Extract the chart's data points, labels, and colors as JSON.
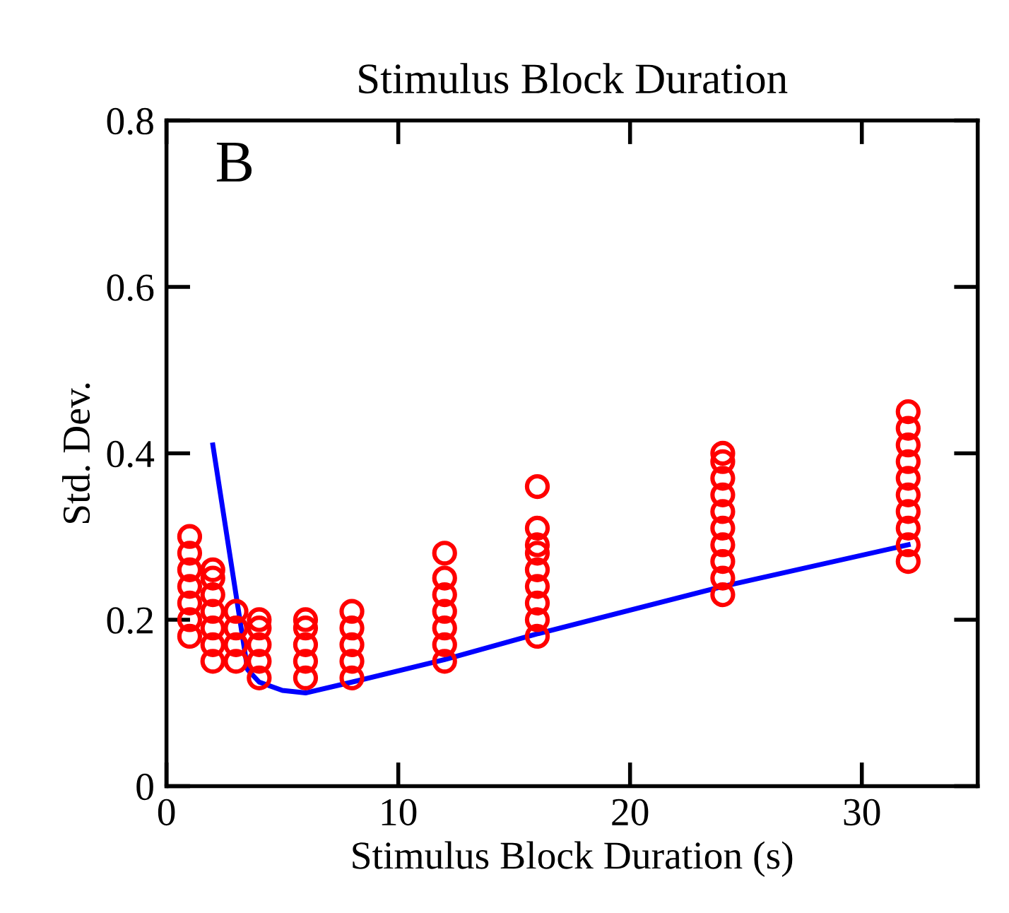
{
  "chart_data": {
    "type": "scatter",
    "title": "Stimulus Block Duration",
    "xlabel": "Stimulus Block Duration (s)",
    "ylabel": "Std. Dev.",
    "annotations": [
      "B"
    ],
    "xlim": [
      0,
      35
    ],
    "ylim": [
      0,
      0.8
    ],
    "xticks": [
      0,
      10,
      20,
      30
    ],
    "yticks": [
      0,
      0.2,
      0.4,
      0.6,
      0.8
    ],
    "grid": false,
    "legend": false,
    "series": [
      {
        "marker": "circle",
        "color": "#ff0000",
        "x": [
          1,
          1,
          1,
          1,
          1,
          1,
          1,
          2,
          2,
          2,
          2,
          2,
          2,
          2,
          3,
          3,
          3,
          3,
          4,
          4,
          4,
          4,
          4,
          6,
          6,
          6,
          6,
          6,
          8,
          8,
          8,
          8,
          8,
          12,
          12,
          12,
          12,
          12,
          12,
          12,
          16,
          16,
          16,
          16,
          16,
          16,
          16,
          16,
          16,
          24,
          24,
          24,
          24,
          24,
          24,
          24,
          24,
          24,
          24,
          32,
          32,
          32,
          32,
          32,
          32,
          32,
          32,
          32,
          32
        ],
        "values": [
          0.18,
          0.2,
          0.22,
          0.24,
          0.26,
          0.28,
          0.3,
          0.15,
          0.17,
          0.19,
          0.21,
          0.23,
          0.25,
          0.26,
          0.15,
          0.17,
          0.19,
          0.21,
          0.13,
          0.15,
          0.17,
          0.19,
          0.2,
          0.13,
          0.15,
          0.17,
          0.19,
          0.2,
          0.13,
          0.15,
          0.17,
          0.19,
          0.21,
          0.15,
          0.17,
          0.19,
          0.21,
          0.23,
          0.25,
          0.28,
          0.18,
          0.2,
          0.22,
          0.24,
          0.26,
          0.28,
          0.29,
          0.31,
          0.36,
          0.23,
          0.25,
          0.27,
          0.29,
          0.31,
          0.33,
          0.35,
          0.37,
          0.39,
          0.4,
          0.27,
          0.29,
          0.31,
          0.33,
          0.35,
          0.37,
          0.39,
          0.41,
          0.43,
          0.45
        ]
      },
      {
        "type": "line",
        "marker": "none",
        "color": "#0000ff",
        "x": [
          2,
          3,
          3.5,
          4,
          5,
          6,
          8,
          12,
          16,
          24,
          32
        ],
        "values": [
          0.41,
          0.23,
          0.14,
          0.125,
          0.115,
          0.112,
          0.125,
          0.152,
          0.183,
          0.24,
          0.29
        ]
      }
    ]
  }
}
